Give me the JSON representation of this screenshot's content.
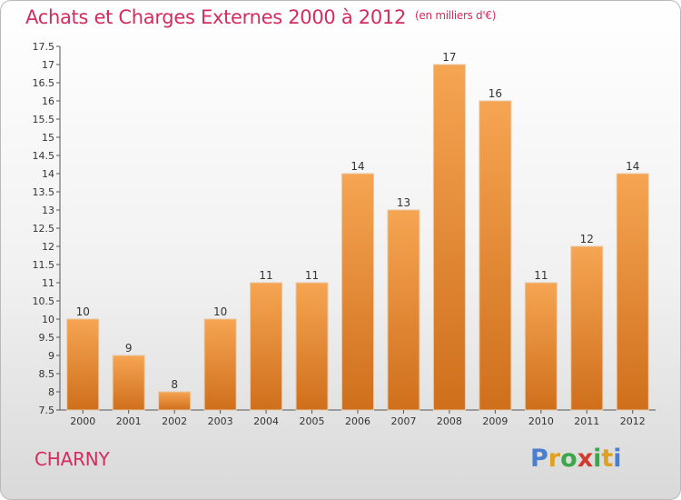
{
  "header": {
    "title": "Achats et Charges Externes 2000 à 2012",
    "unit": "(en milliers d'€)"
  },
  "footer": {
    "town": "CHARNY",
    "brand": {
      "letters": [
        "P",
        "r",
        "o",
        "x",
        "i",
        "t",
        "i"
      ]
    }
  },
  "colors": {
    "accent": "#d52b5f",
    "bar_top": "#f6a552",
    "bar_bottom": "#cf6f1c",
    "brand_letters": [
      "#4a7fd0",
      "#e0a020",
      "#3aa84a",
      "#d33a2f",
      "#3aa84a",
      "#e0a020",
      "#4a7fd0"
    ]
  },
  "chart_data": {
    "type": "bar",
    "title": "Achats et Charges Externes 2000 à 2012",
    "categories": [
      "2000",
      "2001",
      "2002",
      "2003",
      "2004",
      "2005",
      "2006",
      "2007",
      "2008",
      "2009",
      "2010",
      "2011",
      "2012"
    ],
    "values": [
      10,
      9,
      8,
      10,
      11,
      11,
      14,
      13,
      17,
      16,
      11,
      12,
      14
    ],
    "ylim": [
      7.5,
      17.5
    ],
    "yticks": [
      "7.5",
      "8",
      "8.5",
      "9",
      "9.5",
      "10",
      "10.5",
      "11",
      "11.5",
      "12",
      "12.5",
      "13",
      "13.5",
      "14",
      "14.5",
      "15",
      "15.5",
      "16",
      "16.5",
      "17",
      "17.5"
    ],
    "grid": false,
    "xlabel": "",
    "ylabel": ""
  }
}
